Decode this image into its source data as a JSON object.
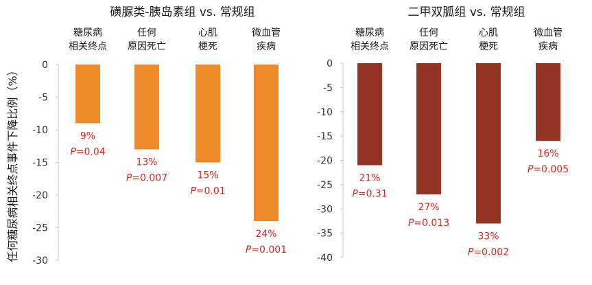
{
  "ylabel": "任何糖尿病相关终点事件下降比例（%）",
  "chart_data": [
    {
      "type": "bar",
      "title": "磺脲类-胰岛素组 vs. 常规组",
      "color": "#ed8a2c",
      "categories": [
        [
          "糖尿病",
          "相关终点"
        ],
        [
          "任何",
          "原因死亡"
        ],
        [
          "心肌",
          "梗死"
        ],
        [
          "微血管",
          "疾病"
        ]
      ],
      "values": [
        -9,
        -13,
        -15,
        -24
      ],
      "labels": [
        "9%",
        "13%",
        "15%",
        "24%"
      ],
      "p_values": [
        "0.04",
        "0.007",
        "0.01",
        "0.001"
      ],
      "p_prefix": "P",
      "ylim": [
        -30,
        0
      ],
      "yticks": [
        0,
        -5,
        -10,
        -15,
        -20,
        -25,
        -30
      ]
    },
    {
      "type": "bar",
      "title": "二甲双胍组 vs. 常规组",
      "color": "#943424",
      "categories": [
        [
          "糖尿病",
          "相关终点"
        ],
        [
          "任何",
          "原因死亡"
        ],
        [
          "心肌",
          "梗死"
        ],
        [
          "微血管",
          "疾病"
        ]
      ],
      "values": [
        -21,
        -27,
        -33,
        -16
      ],
      "labels": [
        "21%",
        "27%",
        "33%",
        "16%"
      ],
      "p_values": [
        "0.31",
        "0.013",
        "0.002",
        "0.005"
      ],
      "p_prefix": "P",
      "ylim": [
        -40,
        0
      ],
      "yticks": [
        0,
        -5,
        -10,
        -15,
        -20,
        -25,
        -30,
        -35,
        -40
      ]
    }
  ]
}
